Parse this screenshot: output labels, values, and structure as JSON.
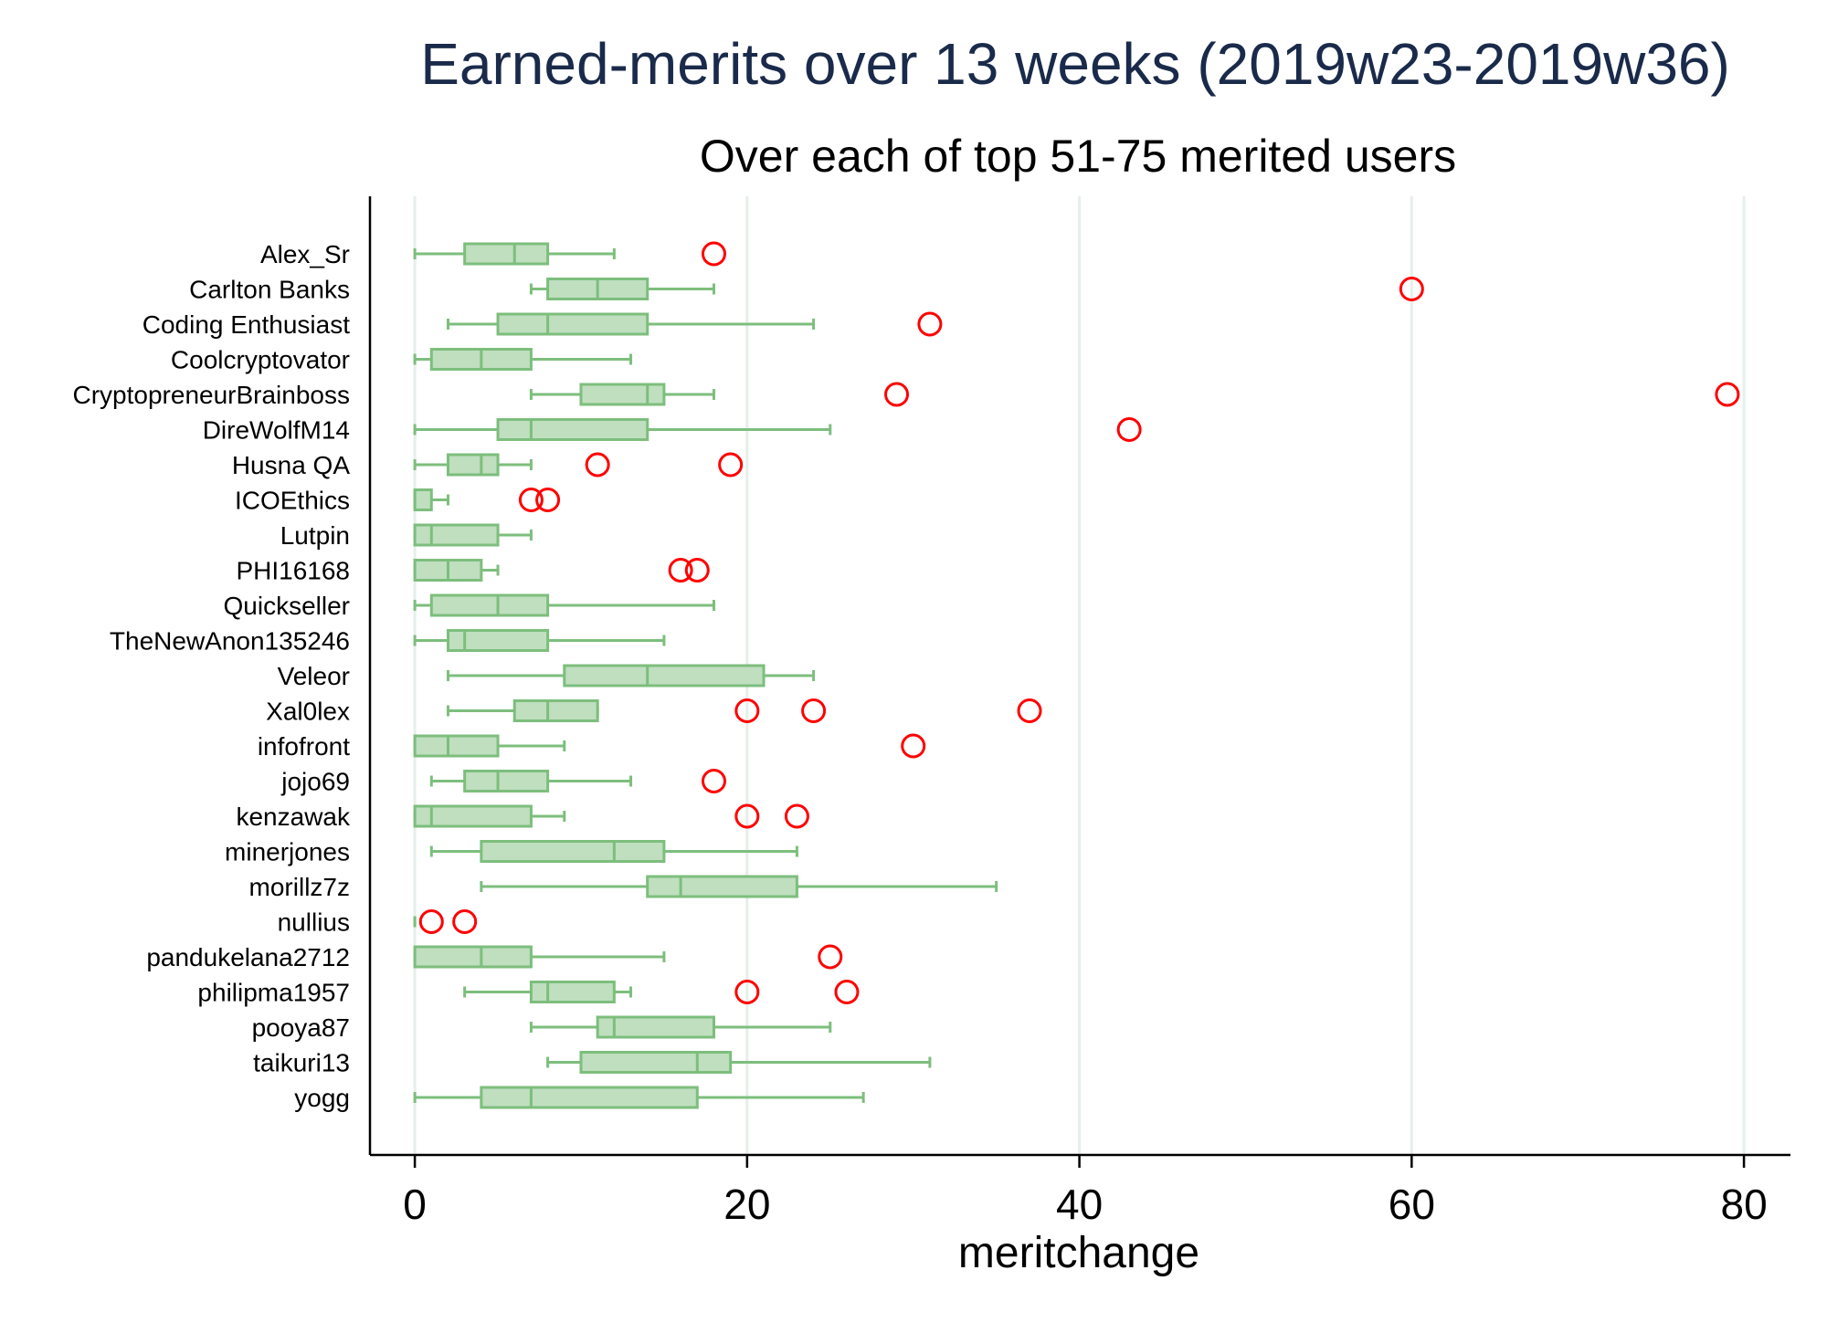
{
  "chart_data": {
    "type": "box",
    "orientation": "horizontal",
    "title": "Earned-merits over 13 weeks (2019w23-2019w36)",
    "subtitle": "Over each of top 51-75 merited users",
    "xlabel": "meritchange",
    "ylabel": "",
    "xlim": [
      -2.7,
      82.8
    ],
    "xticks": [
      0,
      20,
      40,
      60,
      80
    ],
    "grid": "vertical",
    "colors": {
      "title": "#1a2a4a",
      "text": "#000000",
      "box_fill": "#bfdfbf",
      "box_stroke": "#7dbe7d",
      "outlier": "#ff0000",
      "grid": "#e6efe9",
      "axis": "#000000"
    },
    "categories": [
      "Alex_Sr",
      "Carlton Banks",
      "Coding Enthusiast",
      "Coolcryptovator",
      "CryptopreneurBrainboss",
      "DireWolfM14",
      "Husna QA",
      "ICOEthics",
      "Lutpin",
      "PHI16168",
      "Quickseller",
      "TheNewAnon135246",
      "Veleor",
      "Xal0lex",
      "infofront",
      "jojo69",
      "kenzawak",
      "minerjones",
      "morillz7z",
      "nullius",
      "pandukelana2712",
      "philipma1957",
      "pooya87",
      "taikuri13",
      "yogg"
    ],
    "boxes": [
      {
        "min": 0,
        "q1": 3,
        "median": 6,
        "q3": 8,
        "max": 12,
        "outliers": [
          18
        ]
      },
      {
        "min": 7,
        "q1": 8,
        "median": 11,
        "q3": 14,
        "max": 18,
        "outliers": [
          60
        ]
      },
      {
        "min": 2,
        "q1": 5,
        "median": 8,
        "q3": 14,
        "max": 24,
        "outliers": [
          31
        ]
      },
      {
        "min": 0,
        "q1": 1,
        "median": 4,
        "q3": 7,
        "max": 13,
        "outliers": []
      },
      {
        "min": 7,
        "q1": 10,
        "median": 14,
        "q3": 15,
        "max": 18,
        "outliers": [
          29,
          79
        ]
      },
      {
        "min": 0,
        "q1": 5,
        "median": 7,
        "q3": 14,
        "max": 25,
        "outliers": [
          43
        ]
      },
      {
        "min": 0,
        "q1": 2,
        "median": 4,
        "q3": 5,
        "max": 7,
        "outliers": [
          11,
          19
        ]
      },
      {
        "min": 0,
        "q1": 0,
        "median": 0,
        "q3": 1,
        "max": 2,
        "outliers": [
          7,
          8
        ]
      },
      {
        "min": 0,
        "q1": 0,
        "median": 1,
        "q3": 5,
        "max": 7,
        "outliers": []
      },
      {
        "min": 0,
        "q1": 0,
        "median": 2,
        "q3": 4,
        "max": 5,
        "outliers": [
          16,
          17
        ]
      },
      {
        "min": 0,
        "q1": 1,
        "median": 5,
        "q3": 8,
        "max": 18,
        "outliers": []
      },
      {
        "min": 0,
        "q1": 2,
        "median": 3,
        "q3": 8,
        "max": 15,
        "outliers": []
      },
      {
        "min": 2,
        "q1": 9,
        "median": 14,
        "q3": 21,
        "max": 24,
        "outliers": []
      },
      {
        "min": 2,
        "q1": 6,
        "median": 8,
        "q3": 11,
        "max": 11,
        "outliers": [
          20,
          24,
          37
        ]
      },
      {
        "min": 0,
        "q1": 0,
        "median": 2,
        "q3": 5,
        "max": 9,
        "outliers": [
          30
        ]
      },
      {
        "min": 1,
        "q1": 3,
        "median": 5,
        "q3": 8,
        "max": 13,
        "outliers": [
          18
        ]
      },
      {
        "min": 0,
        "q1": 0,
        "median": 1,
        "q3": 7,
        "max": 9,
        "outliers": [
          20,
          23
        ]
      },
      {
        "min": 1,
        "q1": 4,
        "median": 12,
        "q3": 15,
        "max": 23,
        "outliers": []
      },
      {
        "min": 4,
        "q1": 14,
        "median": 16,
        "q3": 23,
        "max": 35,
        "outliers": []
      },
      {
        "min": 0,
        "q1": 0,
        "median": 0,
        "q3": 0,
        "max": 0,
        "outliers": [
          1,
          3
        ]
      },
      {
        "min": 0,
        "q1": 0,
        "median": 4,
        "q3": 7,
        "max": 15,
        "outliers": [
          25
        ]
      },
      {
        "min": 3,
        "q1": 7,
        "median": 8,
        "q3": 12,
        "max": 13,
        "outliers": [
          20,
          26
        ]
      },
      {
        "min": 7,
        "q1": 11,
        "median": 12,
        "q3": 18,
        "max": 25,
        "outliers": []
      },
      {
        "min": 8,
        "q1": 10,
        "median": 17,
        "q3": 19,
        "max": 31,
        "outliers": []
      },
      {
        "min": 0,
        "q1": 4,
        "median": 7,
        "q3": 17,
        "max": 27,
        "outliers": []
      }
    ]
  }
}
